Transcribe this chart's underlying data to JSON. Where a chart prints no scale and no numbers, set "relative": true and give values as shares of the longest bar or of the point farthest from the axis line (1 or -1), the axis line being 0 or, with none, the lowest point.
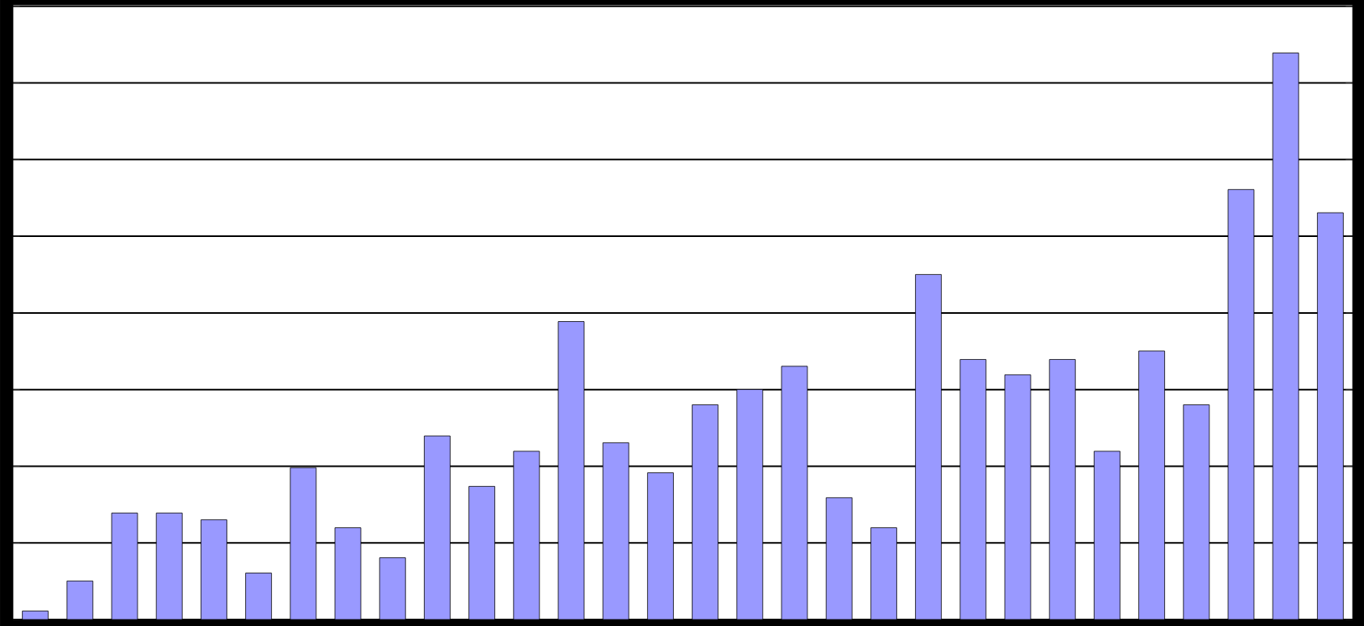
{
  "chart_data": {
    "type": "bar",
    "relative": true,
    "grid": "y",
    "color": "#9999ff",
    "categories": [
      null,
      null,
      null,
      null,
      null,
      null,
      null,
      null,
      null,
      null,
      null,
      null,
      null,
      null,
      null,
      null,
      null,
      null,
      null,
      null,
      null,
      null,
      null,
      null,
      null,
      null,
      null,
      null,
      null,
      null
    ],
    "values": [
      0.015,
      0.068,
      0.188,
      0.188,
      0.176,
      0.082,
      0.268,
      0.162,
      0.109,
      0.324,
      0.235,
      0.297,
      0.526,
      0.312,
      0.259,
      0.379,
      0.406,
      0.447,
      0.215,
      0.162,
      0.609,
      0.459,
      0.432,
      0.459,
      0.297,
      0.474,
      0.379,
      0.759,
      1,
      0.718
    ]
  }
}
